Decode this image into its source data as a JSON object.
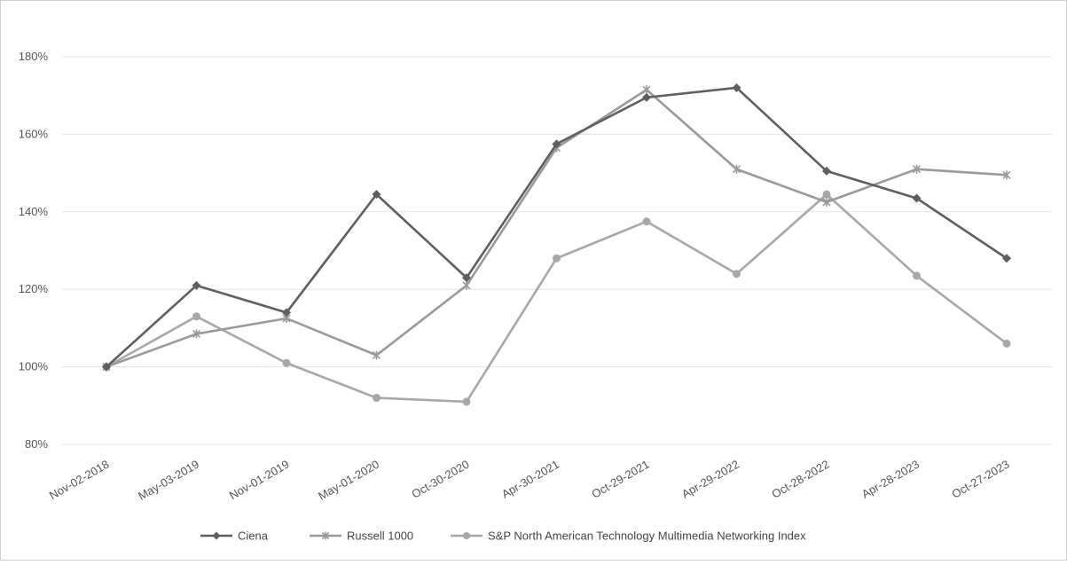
{
  "chart_data": {
    "type": "line",
    "title": "",
    "xlabel": "",
    "ylabel": "",
    "categories": [
      "Nov-02-2018",
      "May-03-2019",
      "Nov-01-2019",
      "May-01-2020",
      "Oct-30-2020",
      "Apr-30-2021",
      "Oct-29-2021",
      "Apr-29-2022",
      "Oct-28-2022",
      "Apr-28-2023",
      "Oct-27-2023"
    ],
    "ylim": [
      80,
      180
    ],
    "yticks": [
      80,
      100,
      120,
      140,
      160,
      180
    ],
    "ytick_labels": [
      "80%",
      "100%",
      "120%",
      "140%",
      "160%",
      "180%"
    ],
    "grid": true,
    "legend_position": "bottom",
    "series": [
      {
        "name": "Ciena",
        "color": "#5f5f5f",
        "marker": "diamond",
        "values": [
          100,
          121,
          114,
          144.5,
          123,
          157.5,
          169.5,
          172,
          150.5,
          143.5,
          128
        ]
      },
      {
        "name": "Russell 1000",
        "color": "#9a9a9a",
        "marker": "star",
        "values": [
          100,
          108.5,
          112.5,
          103,
          121,
          156.5,
          171.5,
          151,
          142.5,
          151,
          149.5
        ]
      },
      {
        "name": "S&P North American Technology Multimedia Networking Index",
        "color": "#a8a8a8",
        "marker": "circle",
        "values": [
          100,
          113,
          101,
          92,
          91,
          128,
          137.5,
          124,
          144.5,
          123.5,
          106
        ]
      }
    ]
  }
}
